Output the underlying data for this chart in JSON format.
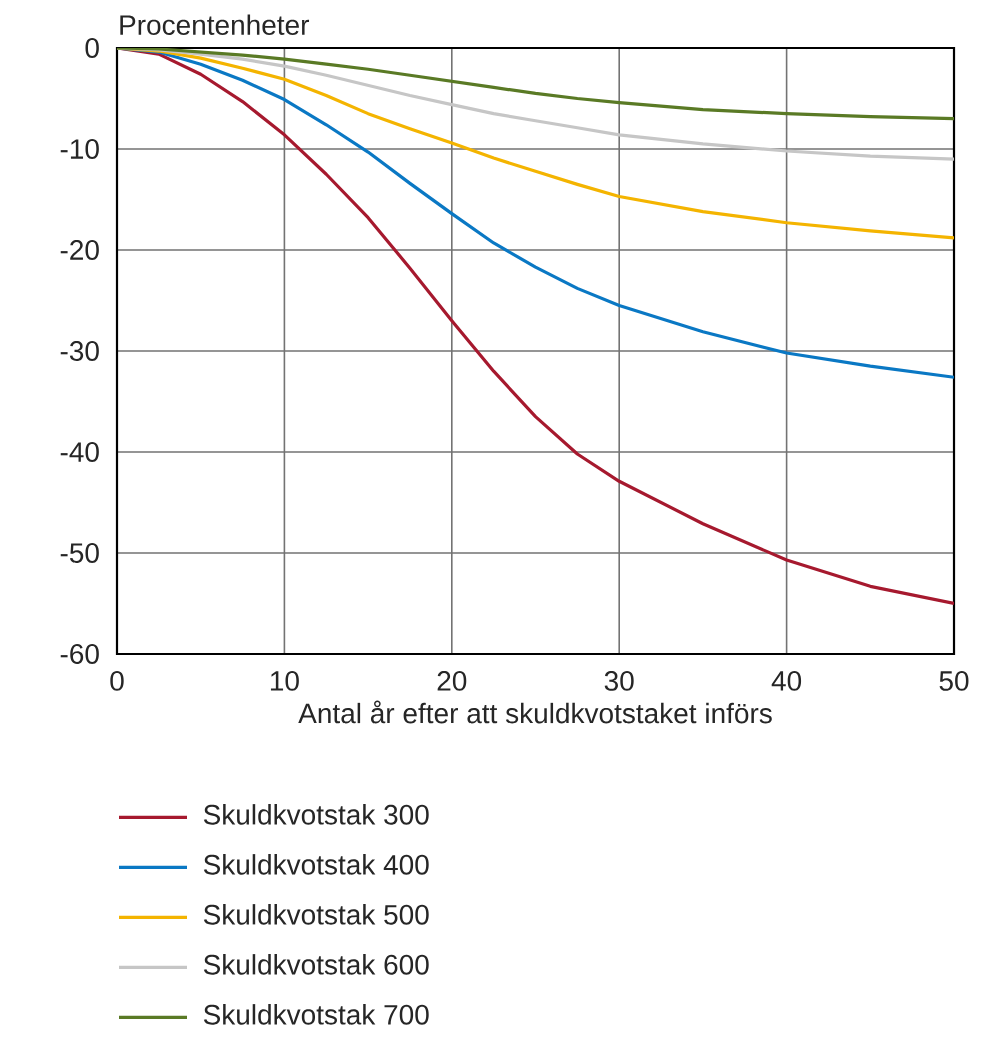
{
  "chart_data": {
    "type": "line",
    "ylabel": "Procentenheter",
    "xlabel": "Antal år efter att skuldkvotstaket införs",
    "x": [
      0,
      2.5,
      5,
      7.5,
      10,
      12.5,
      15,
      17.5,
      20,
      22.5,
      25,
      27.5,
      30,
      35,
      40,
      45,
      50
    ],
    "series": [
      {
        "name": "Skuldkvotstak 300",
        "color": "#a6192e",
        "values": [
          0,
          -0.6,
          -2.6,
          -5.3,
          -8.6,
          -12.5,
          -16.8,
          -21.8,
          -27,
          -32,
          -36.5,
          -40.2,
          -42.9,
          -47.1,
          -50.7,
          -53.3,
          -55
        ]
      },
      {
        "name": "Skuldkvotstak 400",
        "color": "#0a78c4",
        "values": [
          0,
          -0.4,
          -1.6,
          -3.2,
          -5.1,
          -7.6,
          -10.3,
          -13.4,
          -16.4,
          -19.3,
          -21.7,
          -23.8,
          -25.5,
          -28.1,
          -30.2,
          -31.5,
          -32.6
        ]
      },
      {
        "name": "Skuldkvotstak 500",
        "color": "#f4b400",
        "values": [
          0,
          -0.3,
          -1,
          -2,
          -3.1,
          -4.7,
          -6.5,
          -8,
          -9.4,
          -10.9,
          -12.2,
          -13.5,
          -14.7,
          -16.2,
          -17.3,
          -18.1,
          -18.8
        ]
      },
      {
        "name": "Skuldkvotstak 600",
        "color": "#c6c6c6",
        "values": [
          0,
          -0.2,
          -0.6,
          -1.1,
          -1.8,
          -2.7,
          -3.7,
          -4.7,
          -5.6,
          -6.5,
          -7.2,
          -7.9,
          -8.6,
          -9.5,
          -10.2,
          -10.7,
          -11
        ]
      },
      {
        "name": "Skuldkvotstak 700",
        "color": "#5a7a25",
        "values": [
          0,
          -0.1,
          -0.4,
          -0.7,
          -1.1,
          -1.6,
          -2.1,
          -2.7,
          -3.3,
          -3.9,
          -4.5,
          -5,
          -5.4,
          -6.1,
          -6.5,
          -6.8,
          -7
        ]
      }
    ],
    "xlim": [
      0,
      50
    ],
    "ylim": [
      -60,
      0
    ],
    "xticks": [
      0,
      10,
      20,
      30,
      40,
      50
    ],
    "yticks": [
      -60,
      -50,
      -40,
      -30,
      -20,
      -10,
      0
    ],
    "grid": true,
    "legend": "bottom"
  }
}
